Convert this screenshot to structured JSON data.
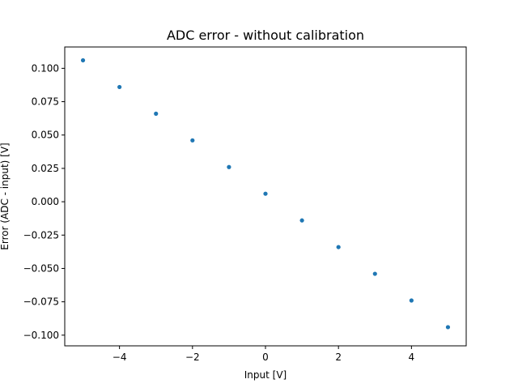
{
  "chart_data": {
    "type": "scatter",
    "title": "ADC error - without calibration",
    "xlabel": "Input [V]",
    "ylabel": "Error (ADC - input) [V]",
    "xlim": [
      -5.5,
      5.5
    ],
    "ylim": [
      -0.108,
      0.116
    ],
    "xticks": [
      -4,
      -2,
      0,
      2,
      4
    ],
    "xtick_labels": [
      "−4",
      "−2",
      "0",
      "2",
      "4"
    ],
    "yticks": [
      -0.1,
      -0.075,
      -0.05,
      -0.025,
      0.0,
      0.025,
      0.05,
      0.075,
      0.1
    ],
    "ytick_labels": [
      "−0.100",
      "−0.075",
      "−0.050",
      "−0.025",
      "0.000",
      "0.025",
      "0.050",
      "0.075",
      "0.100"
    ],
    "grid": false,
    "series": [
      {
        "color": "#1f77b4",
        "x": [
          -5,
          -4,
          -3,
          -2,
          -1,
          0,
          1,
          2,
          3,
          4,
          5
        ],
        "y": [
          0.106,
          0.086,
          0.066,
          0.046,
          0.026,
          0.006,
          -0.014,
          -0.034,
          -0.054,
          -0.074,
          -0.094
        ]
      }
    ]
  }
}
